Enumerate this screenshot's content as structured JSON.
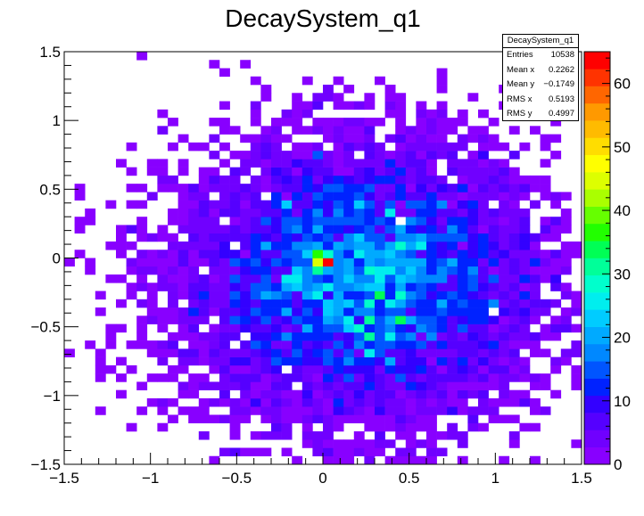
{
  "chart_data": {
    "type": "heatmap",
    "title": "DecaySystem_q1",
    "xlabel": "",
    "ylabel": "",
    "xlim": [
      -1.5,
      1.5
    ],
    "ylim": [
      -1.5,
      1.5
    ],
    "zlim": [
      0,
      65
    ],
    "x_ticks": [
      "−1.5",
      "−1",
      "−0.5",
      "0",
      "0.5",
      "1",
      "1.5"
    ],
    "y_ticks": [
      "1.5",
      "1",
      "0.5",
      "0",
      "−0.5",
      "−1",
      "−1.5"
    ],
    "z_ticks": [
      "0",
      "10",
      "20",
      "30",
      "40",
      "50",
      "60"
    ],
    "bins": {
      "nx": 50,
      "ny": 50
    },
    "distribution": {
      "shape": "2D gaussian",
      "mean_x": 0.2262,
      "mean_y": -0.1749,
      "rms_x": 0.5193,
      "rms_y": 0.4997,
      "entries": 10538,
      "peak_bin": {
        "x": 0.03,
        "y": -0.03,
        "value": 65
      }
    },
    "stats": {
      "title": "DecaySystem_q1",
      "rows": [
        {
          "label": "Entries",
          "value": "10538"
        },
        {
          "label": "Mean x",
          "value": "0.2262"
        },
        {
          "label": "Mean y",
          "value": "−0.1749"
        },
        {
          "label": "RMS x",
          "value": "0.5193"
        },
        {
          "label": "RMS y",
          "value": "0.4997"
        }
      ]
    },
    "palette": [
      "#8800ff",
      "#7000ff",
      "#5500ff",
      "#3300ff",
      "#0022ff",
      "#0055ff",
      "#0088ff",
      "#00aaff",
      "#00ccff",
      "#00eeee",
      "#00ffcc",
      "#00ff99",
      "#00ff55",
      "#22ff00",
      "#66ff00",
      "#aaff00",
      "#ddff00",
      "#ffff00",
      "#ffdd00",
      "#ffbb00",
      "#ff9900",
      "#ff6600",
      "#ff3300",
      "#ff0000"
    ]
  }
}
